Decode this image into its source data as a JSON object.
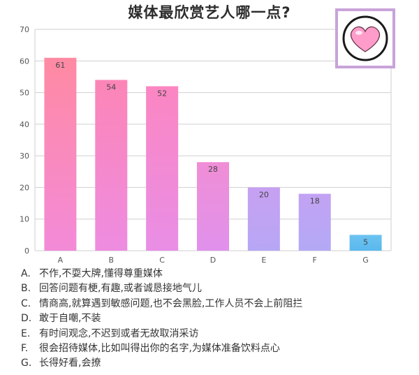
{
  "chart_data": {
    "type": "bar",
    "title": "媒体最欣赏艺人哪一点?",
    "categories": [
      "A",
      "B",
      "C",
      "D",
      "E",
      "F",
      "G"
    ],
    "values": [
      61,
      54,
      52,
      28,
      20,
      18,
      5
    ],
    "ylim": [
      0,
      70
    ],
    "yticks": [
      0,
      10,
      20,
      30,
      40,
      50,
      60,
      70
    ],
    "grid": true,
    "bar_colors": [
      [
        "#ff8aa3",
        "#f38ad8"
      ],
      [
        "#fc85b6",
        "#ee8ce1"
      ],
      [
        "#fb86c2",
        "#e98ee6"
      ],
      [
        "#f08ed6",
        "#e091ec"
      ],
      [
        "#c7a0f2",
        "#b7a7f4"
      ],
      [
        "#c3a2f3",
        "#b3a9f5"
      ],
      [
        "#6cc3f0",
        "#5ab8ee"
      ]
    ]
  },
  "legend": [
    {
      "code": "A.",
      "text": "不作,不耍大牌,懂得尊重媒体"
    },
    {
      "code": "B.",
      "text": "回答问题有梗,有趣,或者诚恳接地气儿"
    },
    {
      "code": "C.",
      "text": "情商高,就算遇到敏感问题,也不会黑脸,工作人员不会上前阻拦"
    },
    {
      "code": "D.",
      "text": "敢于自嘲,不装"
    },
    {
      "code": "E.",
      "text": "有时间观念,不迟到或者无故取消采访"
    },
    {
      "code": "F.",
      "text": "很会招待媒体,比如叫得出你的名字,为媒体准备饮料点心"
    },
    {
      "code": "G.",
      "text": "长得好看,会撩"
    }
  ],
  "decoration": {
    "icon": "heart-icon",
    "accent": "#c9a3d9"
  }
}
